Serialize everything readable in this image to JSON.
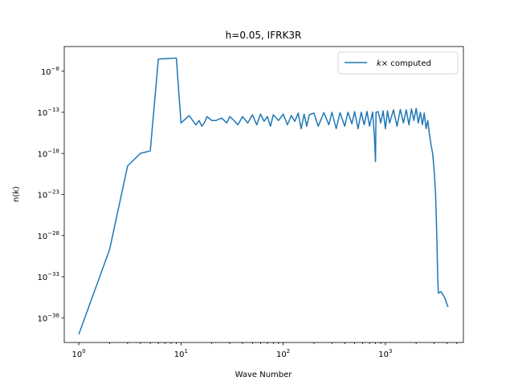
{
  "chart_data": {
    "type": "line",
    "title": "h=0.05, IFRK3R",
    "xlabel": "Wave Number",
    "ylabel": "n(k)",
    "xscale": "log",
    "yscale": "log",
    "xlim": [
      0.72,
      5800
    ],
    "ylim": [
      1e-41,
      1e-05
    ],
    "grid": false,
    "legend_position": "upper right",
    "x_ticks": [
      {
        "base": "10",
        "exp": "0",
        "value": 1
      },
      {
        "base": "10",
        "exp": "1",
        "value": 10
      },
      {
        "base": "10",
        "exp": "2",
        "value": 100
      },
      {
        "base": "10",
        "exp": "3",
        "value": 1000
      }
    ],
    "y_ticks": [
      {
        "base": "10",
        "exp": "−8",
        "value": 1e-08
      },
      {
        "base": "10",
        "exp": "−13",
        "value": 1e-13
      },
      {
        "base": "10",
        "exp": "−18",
        "value": 1e-18
      },
      {
        "base": "10",
        "exp": "−23",
        "value": 1e-23
      },
      {
        "base": "10",
        "exp": "−28",
        "value": 1e-28
      },
      {
        "base": "10",
        "exp": "−33",
        "value": 1e-33
      },
      {
        "base": "10",
        "exp": "−38",
        "value": 1e-38
      }
    ],
    "series": [
      {
        "name_math": "k",
        "name_op": "×",
        "name_rest": " computed",
        "color": "#1f77b4",
        "points": [
          [
            1,
            1e-40
          ],
          [
            2,
            2e-30
          ],
          [
            3,
            3e-20
          ],
          [
            4,
            1e-18
          ],
          [
            5,
            2e-18
          ],
          [
            6,
            3e-07
          ],
          [
            9,
            4e-07
          ],
          [
            10,
            5e-15
          ],
          [
            12,
            4e-14
          ],
          [
            13,
            1e-14
          ],
          [
            14,
            3e-15
          ],
          [
            15,
            1e-14
          ],
          [
            16,
            2e-15
          ],
          [
            17,
            6e-15
          ],
          [
            18,
            3e-14
          ],
          [
            20,
            1e-14
          ],
          [
            22,
            1e-14
          ],
          [
            25,
            2e-14
          ],
          [
            28,
            5e-15
          ],
          [
            30,
            3e-14
          ],
          [
            33,
            1e-14
          ],
          [
            36,
            3e-15
          ],
          [
            40,
            3e-14
          ],
          [
            45,
            5e-15
          ],
          [
            50,
            5e-14
          ],
          [
            55,
            3e-15
          ],
          [
            60,
            6e-14
          ],
          [
            65,
            8e-15
          ],
          [
            70,
            3e-14
          ],
          [
            75,
            2e-15
          ],
          [
            80,
            5e-14
          ],
          [
            90,
            1e-14
          ],
          [
            100,
            6e-14
          ],
          [
            110,
            3e-15
          ],
          [
            120,
            4e-14
          ],
          [
            130,
            8e-15
          ],
          [
            140,
            8e-14
          ],
          [
            150,
            1e-15
          ],
          [
            160,
            6e-14
          ],
          [
            170,
            2e-15
          ],
          [
            180,
            5e-14
          ],
          [
            200,
            8e-14
          ],
          [
            220,
            2e-15
          ],
          [
            250,
            9e-14
          ],
          [
            280,
            3e-15
          ],
          [
            300,
            1e-13
          ],
          [
            330,
            1e-15
          ],
          [
            360,
            9e-14
          ],
          [
            400,
            2e-15
          ],
          [
            430,
            1e-13
          ],
          [
            470,
            4e-15
          ],
          [
            500,
            1.2e-13
          ],
          [
            540,
            1e-15
          ],
          [
            580,
            1e-13
          ],
          [
            620,
            3e-15
          ],
          [
            660,
            1.3e-13
          ],
          [
            700,
            2e-15
          ],
          [
            750,
            1.1e-13
          ],
          [
            780,
            1.5e-16
          ],
          [
            800,
            1e-19
          ],
          [
            810,
            1e-13
          ],
          [
            850,
            1.2e-13
          ],
          [
            900,
            5e-15
          ],
          [
            950,
            1.5e-13
          ],
          [
            1000,
            1e-15
          ],
          [
            1050,
            1.5e-13
          ],
          [
            1100,
            5e-15
          ],
          [
            1200,
            2e-13
          ],
          [
            1300,
            2e-15
          ],
          [
            1400,
            2.2e-13
          ],
          [
            1500,
            5e-15
          ],
          [
            1600,
            2e-13
          ],
          [
            1700,
            3e-15
          ],
          [
            1800,
            2.5e-13
          ],
          [
            1900,
            1e-14
          ],
          [
            2000,
            3e-13
          ],
          [
            2100,
            5e-15
          ],
          [
            2200,
            1e-13
          ],
          [
            2300,
            3e-15
          ],
          [
            2400,
            8e-14
          ],
          [
            2500,
            1e-15
          ],
          [
            2600,
            1e-14
          ],
          [
            2700,
            2e-16
          ],
          [
            2800,
            1e-17
          ],
          [
            2900,
            1e-18
          ],
          [
            3000,
            1e-20
          ],
          [
            3100,
            1e-23
          ],
          [
            3150,
            1e-26
          ],
          [
            3200,
            1e-29
          ],
          [
            3250,
            1e-33
          ],
          [
            3300,
            1e-35
          ],
          [
            3500,
            1.5e-35
          ],
          [
            3800,
            3e-36
          ],
          [
            4100,
            2e-37
          ]
        ]
      }
    ]
  }
}
